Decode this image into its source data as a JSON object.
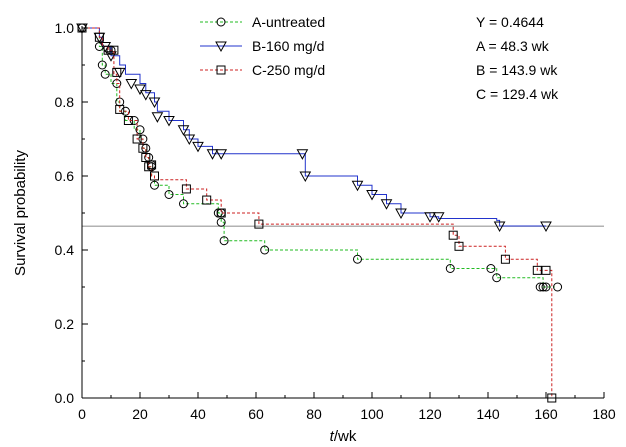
{
  "chart_data": {
    "type": "line",
    "subtype": "kaplan-meier survival curves",
    "title": "",
    "xlabel_italic": "t",
    "xlabel_unit": "/wk",
    "ylabel": "Survival probability",
    "xlim": [
      0,
      180
    ],
    "ylim": [
      0,
      1.0
    ],
    "xticks": [
      0,
      20,
      40,
      60,
      80,
      100,
      120,
      140,
      160,
      180
    ],
    "yticks": [
      0.0,
      0.2,
      0.4,
      0.6,
      0.8,
      1.0
    ],
    "xtick_labels": [
      "0",
      "20",
      "40",
      "60",
      "80",
      "100",
      "120",
      "140",
      "160",
      "180"
    ],
    "ytick_labels": [
      "0.0",
      "0.2",
      "0.4",
      "0.6",
      "0.8",
      "1.0"
    ],
    "grid": false,
    "legend_position": "top-center",
    "reference_line": {
      "y": 0.4644,
      "color": "#999999"
    },
    "annotations": [
      "Y = 0.4644",
      "A = 48.3 wk",
      "B = 143.9 wk",
      "C = 129.4 wk"
    ],
    "series": [
      {
        "name": "A-untreated",
        "color": "#22bb22",
        "marker": "circle",
        "step_x": [
          0,
          3,
          6,
          7,
          8,
          10,
          12,
          13,
          15,
          18,
          20,
          21,
          22,
          23,
          24,
          25,
          30,
          35,
          47,
          48,
          49,
          63,
          95,
          127,
          141,
          143,
          159,
          160,
          163
        ],
        "step_y": [
          1.0,
          1.0,
          0.95,
          0.9,
          0.875,
          0.85,
          0.8,
          0.775,
          0.75,
          0.725,
          0.7,
          0.675,
          0.65,
          0.625,
          0.6,
          0.575,
          0.55,
          0.525,
          0.5,
          0.475,
          0.425,
          0.4,
          0.375,
          0.35,
          0.35,
          0.325,
          0.3,
          0.3,
          0.3
        ],
        "markers_x": [
          0,
          6,
          7,
          8,
          10,
          12,
          13,
          15,
          18,
          20,
          21,
          22,
          23,
          24,
          24,
          25,
          30,
          35,
          47,
          48,
          48,
          49,
          63,
          95,
          127,
          141,
          143,
          158,
          159,
          160,
          164
        ],
        "markers_y": [
          1.0,
          0.95,
          0.9,
          0.875,
          0.94,
          0.85,
          0.8,
          0.775,
          0.75,
          0.725,
          0.7,
          0.675,
          0.65,
          0.625,
          0.63,
          0.575,
          0.55,
          0.525,
          0.5,
          0.475,
          0.5,
          0.425,
          0.4,
          0.375,
          0.35,
          0.35,
          0.325,
          0.3,
          0.3,
          0.3,
          0.3
        ]
      },
      {
        "name": "B-160 mg/d",
        "color": "#2233cc",
        "marker": "triangle-down",
        "step_x": [
          0,
          6,
          7,
          8,
          10,
          12,
          13,
          15,
          20,
          22,
          25,
          26,
          30,
          35,
          37,
          40,
          45,
          48,
          76,
          77,
          95,
          100,
          105,
          110,
          120,
          123,
          143,
          144,
          160
        ],
        "step_y": [
          1.0,
          0.975,
          0.95,
          0.95,
          0.925,
          0.925,
          0.9,
          0.875,
          0.85,
          0.825,
          0.8,
          0.775,
          0.75,
          0.725,
          0.7,
          0.68,
          0.66,
          0.66,
          0.66,
          0.6,
          0.575,
          0.55,
          0.525,
          0.5,
          0.49,
          0.485,
          0.48,
          0.465,
          0.465
        ],
        "markers_x": [
          0,
          6,
          8,
          10,
          13,
          17,
          20,
          22,
          25,
          26,
          30,
          35,
          37,
          40,
          45,
          48,
          76,
          77,
          95,
          100,
          105,
          110,
          120,
          123,
          144,
          160
        ],
        "markers_y": [
          1.0,
          0.975,
          0.95,
          0.925,
          0.88,
          0.85,
          0.835,
          0.82,
          0.8,
          0.76,
          0.75,
          0.725,
          0.7,
          0.68,
          0.66,
          0.66,
          0.66,
          0.6,
          0.575,
          0.55,
          0.525,
          0.5,
          0.49,
          0.49,
          0.465,
          0.465
        ]
      },
      {
        "name": "C-250 mg/d",
        "color": "#cc2222",
        "marker": "square",
        "step_x": [
          0,
          6,
          7,
          9,
          11,
          12,
          13,
          16,
          19,
          21,
          22,
          23,
          24,
          25,
          36,
          43,
          48,
          61,
          128,
          130,
          146,
          157,
          160,
          162
        ],
        "step_y": [
          1.0,
          0.975,
          0.95,
          0.94,
          0.875,
          0.85,
          0.775,
          0.75,
          0.7,
          0.675,
          0.65,
          0.625,
          0.6,
          0.59,
          0.565,
          0.535,
          0.5,
          0.47,
          0.44,
          0.41,
          0.375,
          0.345,
          0.345,
          0.0
        ],
        "markers_x": [
          0,
          6,
          9,
          11,
          12,
          13,
          16,
          19,
          21,
          22,
          23,
          24,
          25,
          36,
          43,
          48,
          61,
          128,
          130,
          146,
          157,
          160,
          162
        ],
        "markers_y": [
          1.0,
          0.975,
          0.94,
          0.94,
          0.88,
          0.78,
          0.75,
          0.7,
          0.675,
          0.65,
          0.625,
          0.63,
          0.6,
          0.565,
          0.535,
          0.5,
          0.47,
          0.44,
          0.41,
          0.375,
          0.345,
          0.345,
          0.0
        ]
      }
    ]
  }
}
